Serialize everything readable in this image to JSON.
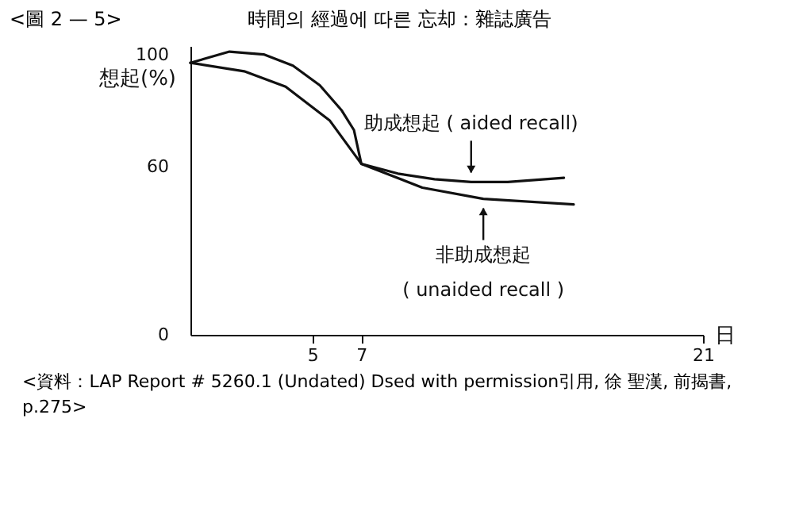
{
  "chart_data": {
    "type": "line",
    "title": "時間의 經過에 따른 忘却：雜誌廣告",
    "ylabel": "想起(%)",
    "xlabel": "日",
    "x": [
      0,
      1.6,
      3,
      4.2,
      5.3,
      6.2,
      6.7,
      7,
      8.5,
      10,
      11.5,
      13,
      15.3
    ],
    "series": [
      {
        "color": "#111111",
        "values": [
          97,
          101,
          100,
          96,
          89,
          80,
          73,
          61,
          57.5,
          55.5,
          54.5,
          54.5,
          56
        ]
      },
      {
        "color": "#111111",
        "x": [
          0,
          2.2,
          3.9,
          5.7,
          7,
          9.5,
          12,
          15.7
        ],
        "values": [
          97,
          94,
          88.5,
          76.5,
          61,
          52.5,
          48.5,
          46.5
        ]
      }
    ],
    "xlim": [
      0,
      21
    ],
    "xticks": [
      5,
      7,
      21
    ],
    "ylim": [
      0,
      103
    ],
    "yticks": [
      0,
      60,
      100
    ],
    "grid": false,
    "legend": false,
    "marker": "none",
    "line_style": "solid",
    "annotations": [
      "<圖 2 — 5>",
      {
        "text": "助成想起 ( aided recall)",
        "x": 11.5,
        "y": 54.5
      },
      {
        "text": "非助成想起\n( unaided recall )",
        "x": 12,
        "y": 48.5
      },
      "<資料：LAP Report # 5260.1 (Undated) Dsed with permission引用, 徐 聖漢, 前揭書, p.275>"
    ]
  }
}
